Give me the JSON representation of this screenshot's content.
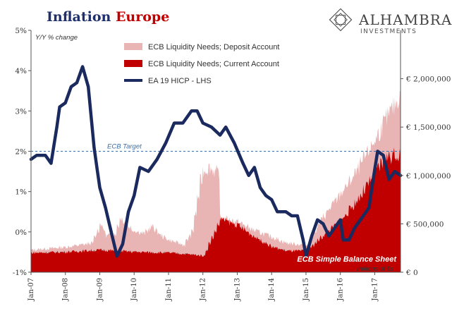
{
  "chart_data": {
    "type": "area",
    "title": {
      "part1": "Inflation",
      "part2": "Europe"
    },
    "left_axis_label": "Y/Y % change",
    "left_ticks": [
      "5%",
      "4%",
      "3%",
      "2%",
      "1%",
      "0%",
      "-1%"
    ],
    "right_ticks": [
      "€ 2,000,000",
      "€ 1,500,000",
      "€ 1,000,000",
      "€ 500,000",
      "€ 0"
    ],
    "x_ticks": [
      "Jan-07",
      "Jan-08",
      "Jan-09",
      "Jan-10",
      "Jan-11",
      "Jan-12",
      "Jan-13",
      "Jan-14",
      "Jan-15",
      "Jan-16",
      "Jan-17"
    ],
    "ylim_left": [
      -1,
      5
    ],
    "ylim_right": [
      0,
      2500000
    ],
    "x_range": [
      "2007-01",
      "2017-10"
    ],
    "reference_line": {
      "value": 2,
      "label": "ECB Target"
    },
    "annotation": {
      "title": "ECB Simple Balance Sheet",
      "subtitle": "millions of €s"
    },
    "colors": {
      "deposit": "#e8b4b4",
      "current": "#c00000",
      "hicp": "#1a2a5e",
      "title_blue": "#1f2f6b",
      "title_red": "#c00000",
      "target": "#3a6ea8"
    },
    "series": [
      {
        "name": "ECB Liquidity Needs; Deposit Account",
        "axis": "right",
        "kind": "area",
        "points": [
          [
            "2007-01",
            230000
          ],
          [
            "2008-01",
            260000
          ],
          [
            "2008-10",
            300000
          ],
          [
            "2009-01",
            500000
          ],
          [
            "2009-03",
            380000
          ],
          [
            "2009-06",
            400000
          ],
          [
            "2009-08",
            560000
          ],
          [
            "2009-12",
            440000
          ],
          [
            "2010-04",
            400000
          ],
          [
            "2010-07",
            470000
          ],
          [
            "2010-10",
            380000
          ],
          [
            "2011-01",
            330000
          ],
          [
            "2011-06",
            280000
          ],
          [
            "2011-09",
            420000
          ],
          [
            "2011-12",
            950000
          ],
          [
            "2012-01",
            1050000
          ],
          [
            "2012-03",
            1080000
          ],
          [
            "2012-06",
            1020000
          ],
          [
            "2012-07",
            560000
          ],
          [
            "2013-01",
            520000
          ],
          [
            "2013-06",
            440000
          ],
          [
            "2014-01",
            360000
          ],
          [
            "2014-06",
            300000
          ],
          [
            "2015-01",
            280000
          ],
          [
            "2015-06",
            540000
          ],
          [
            "2016-01",
            820000
          ],
          [
            "2016-06",
            1020000
          ],
          [
            "2017-01",
            1380000
          ],
          [
            "2017-06",
            1650000
          ],
          [
            "2017-10",
            1850000
          ]
        ]
      },
      {
        "name": "ECB Liquidity Needs; Current Account",
        "axis": "right",
        "kind": "area",
        "points": [
          [
            "2007-01",
            200000
          ],
          [
            "2008-01",
            210000
          ],
          [
            "2009-01",
            230000
          ],
          [
            "2010-01",
            210000
          ],
          [
            "2011-01",
            200000
          ],
          [
            "2011-06",
            190000
          ],
          [
            "2012-01",
            170000
          ],
          [
            "2012-07",
            550000
          ],
          [
            "2013-01",
            480000
          ],
          [
            "2013-06",
            380000
          ],
          [
            "2014-01",
            260000
          ],
          [
            "2014-06",
            220000
          ],
          [
            "2015-01",
            220000
          ],
          [
            "2015-06",
            360000
          ],
          [
            "2016-01",
            540000
          ],
          [
            "2016-06",
            720000
          ],
          [
            "2017-01",
            1020000
          ],
          [
            "2017-04",
            1180000
          ],
          [
            "2017-10",
            1230000
          ]
        ]
      },
      {
        "name": "EA 19 HICP - LHS",
        "axis": "left",
        "kind": "line",
        "points": [
          [
            "2007-01",
            1.8
          ],
          [
            "2007-03",
            1.9
          ],
          [
            "2007-06",
            1.9
          ],
          [
            "2007-08",
            1.7
          ],
          [
            "2007-10",
            2.6
          ],
          [
            "2007-11",
            3.1
          ],
          [
            "2008-01",
            3.2
          ],
          [
            "2008-03",
            3.6
          ],
          [
            "2008-05",
            3.7
          ],
          [
            "2008-07",
            4.1
          ],
          [
            "2008-09",
            3.6
          ],
          [
            "2008-11",
            2.1
          ],
          [
            "2008-12",
            1.6
          ],
          [
            "2009-01",
            1.1
          ],
          [
            "2009-03",
            0.6
          ],
          [
            "2009-05",
            0.0
          ],
          [
            "2009-07",
            -0.6
          ],
          [
            "2009-09",
            -0.3
          ],
          [
            "2009-11",
            0.5
          ],
          [
            "2010-01",
            0.9
          ],
          [
            "2010-03",
            1.6
          ],
          [
            "2010-06",
            1.5
          ],
          [
            "2010-09",
            1.8
          ],
          [
            "2010-12",
            2.2
          ],
          [
            "2011-03",
            2.7
          ],
          [
            "2011-06",
            2.7
          ],
          [
            "2011-09",
            3.0
          ],
          [
            "2011-11",
            3.0
          ],
          [
            "2012-01",
            2.7
          ],
          [
            "2012-04",
            2.6
          ],
          [
            "2012-07",
            2.4
          ],
          [
            "2012-09",
            2.6
          ],
          [
            "2012-12",
            2.2
          ],
          [
            "2013-03",
            1.7
          ],
          [
            "2013-05",
            1.4
          ],
          [
            "2013-07",
            1.6
          ],
          [
            "2013-09",
            1.1
          ],
          [
            "2013-11",
            0.9
          ],
          [
            "2014-01",
            0.8
          ],
          [
            "2014-03",
            0.5
          ],
          [
            "2014-06",
            0.5
          ],
          [
            "2014-08",
            0.4
          ],
          [
            "2014-10",
            0.4
          ],
          [
            "2014-12",
            -0.2
          ],
          [
            "2015-01",
            -0.6
          ],
          [
            "2015-03",
            -0.1
          ],
          [
            "2015-05",
            0.3
          ],
          [
            "2015-07",
            0.2
          ],
          [
            "2015-09",
            -0.1
          ],
          [
            "2015-11",
            0.1
          ],
          [
            "2016-01",
            0.3
          ],
          [
            "2016-02",
            -0.2
          ],
          [
            "2016-04",
            -0.2
          ],
          [
            "2016-06",
            0.1
          ],
          [
            "2016-09",
            0.4
          ],
          [
            "2016-11",
            0.6
          ],
          [
            "2016-12",
            1.1
          ],
          [
            "2017-02",
            2.0
          ],
          [
            "2017-04",
            1.9
          ],
          [
            "2017-06",
            1.3
          ],
          [
            "2017-08",
            1.5
          ],
          [
            "2017-10",
            1.4
          ]
        ]
      }
    ]
  }
}
